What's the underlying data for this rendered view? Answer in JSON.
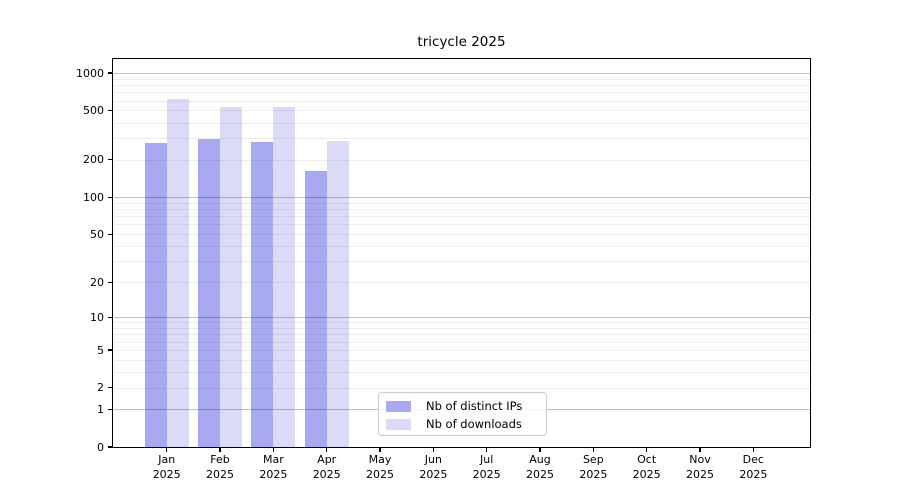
{
  "chart_data": {
    "type": "bar",
    "title": "tricycle 2025",
    "year": "2025",
    "categories": [
      "Jan",
      "Feb",
      "Mar",
      "Apr",
      "May",
      "Jun",
      "Jul",
      "Aug",
      "Sep",
      "Oct",
      "Nov",
      "Dec"
    ],
    "series": [
      {
        "name": "Nb of distinct IPs",
        "color": "#a9a9f2",
        "values": [
          275,
          296,
          279,
          163,
          0,
          0,
          0,
          0,
          0,
          0,
          0,
          0
        ]
      },
      {
        "name": "Nb of downloads",
        "color": "#dbdbf8",
        "values": [
          613,
          533,
          535,
          285,
          0,
          0,
          0,
          0,
          0,
          0,
          0,
          0
        ]
      }
    ],
    "y_scale": "log1p",
    "y_ticks": [
      0,
      1,
      2,
      5,
      10,
      20,
      50,
      100,
      200,
      500,
      1000
    ],
    "y_axis_max_tick": 1000,
    "grid": {
      "horizontal": true,
      "major_color": "#c6c6c6",
      "minor_color": "#ededed"
    },
    "legend": {
      "position": "inside-bottom-center"
    },
    "axis_color": "#000000",
    "text_color": "#000000"
  }
}
